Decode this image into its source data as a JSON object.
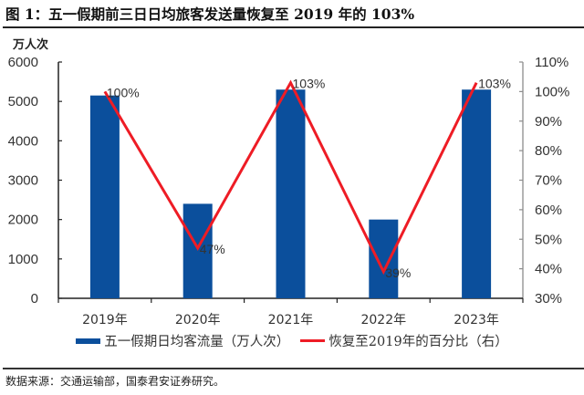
{
  "header": {
    "title": "图 1：五一假期前三日日均旅客发送量恢复至 2019 年的 103%",
    "unit": "万人次"
  },
  "source": "数据来源：交通运输部，国泰君安证券研究。",
  "colors": {
    "bar": "#0b4f9c",
    "line": "#ee1c25",
    "axis": "#222222",
    "right_axis": "#8c8c8c"
  },
  "chart_data": {
    "type": "bar+line",
    "title": "五一假期前三日日均旅客发送量恢复至 2019 年的 103%",
    "categories": [
      "2019年",
      "2020年",
      "2021年",
      "2022年",
      "2023年"
    ],
    "series": [
      {
        "name": "五一假期日均客流量（万人次）",
        "type": "bar",
        "axis": "left",
        "values": [
          5150,
          2400,
          5300,
          2000,
          5300
        ]
      },
      {
        "name": "恢复至2019年的百分比（右）",
        "type": "line",
        "axis": "right",
        "values": [
          100,
          47,
          103,
          39,
          103
        ],
        "data_labels": [
          "100%",
          "47%",
          "103%",
          "39%",
          "103%"
        ]
      }
    ],
    "ylabel": "万人次",
    "ylim": [
      0,
      6000
    ],
    "yticks": [
      "0",
      "1000",
      "2000",
      "3000",
      "4000",
      "5000",
      "6000"
    ],
    "y2lim": [
      30,
      110
    ],
    "y2ticks": [
      "30%",
      "40%",
      "50%",
      "60%",
      "70%",
      "80%",
      "90%",
      "100%",
      "110%"
    ],
    "grid": false,
    "legend_position": "bottom"
  }
}
